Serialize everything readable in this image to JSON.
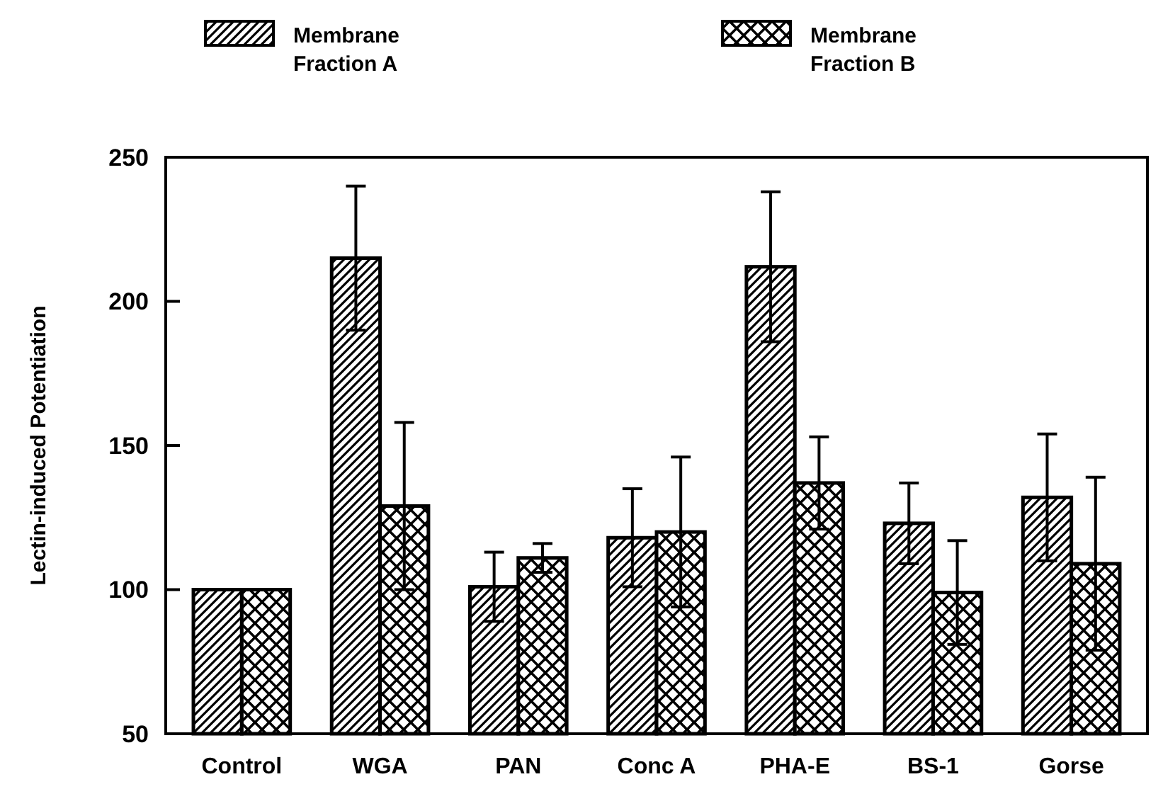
{
  "chart_data": {
    "type": "bar",
    "ylabel": "Lectin-induced Potentiation",
    "categories": [
      "Control",
      "WGA",
      "PAN",
      "Conc A",
      "PHA-E",
      "BS-1",
      "Gorse"
    ],
    "series": [
      {
        "name": "Membrane Fraction A",
        "color": "#000000",
        "values": [
          100,
          215,
          101,
          118,
          212,
          123,
          132
        ],
        "errors": [
          null,
          25,
          12,
          17,
          26,
          14,
          22
        ]
      },
      {
        "name": "Membrane Fraction B",
        "color": "#000000",
        "values": [
          100,
          129,
          111,
          120,
          137,
          99,
          109
        ],
        "errors": [
          null,
          29,
          5,
          26,
          16,
          18,
          30
        ]
      }
    ],
    "ylim": [
      50,
      250
    ],
    "yticks": [
      50,
      100,
      150,
      200,
      250
    ],
    "legend": "top",
    "grid": false
  }
}
